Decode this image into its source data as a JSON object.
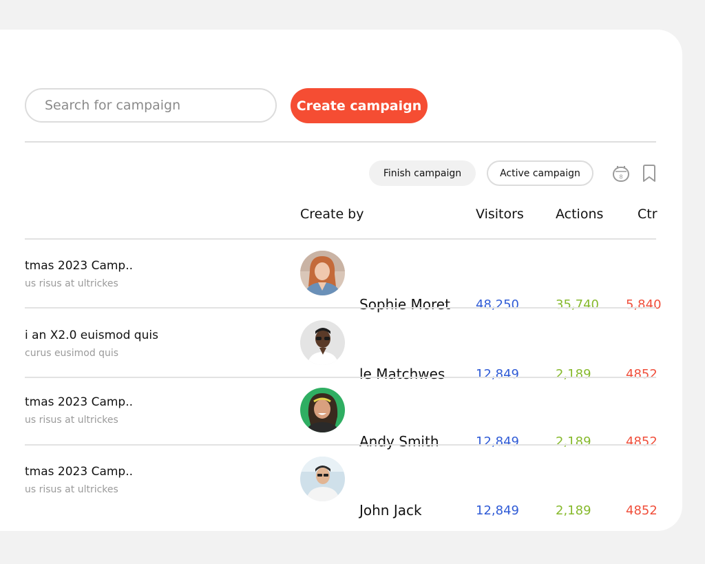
{
  "search": {
    "placeholder": "Search for campaign"
  },
  "create_button": {
    "label": "Create campaign"
  },
  "filters": [
    {
      "label": "Finish campaign"
    },
    {
      "label": "Active campaign"
    }
  ],
  "calendar_badge": "8",
  "columns": {
    "create_by": "Create by",
    "visitors": "Visitors",
    "actions": "Actions",
    "ctr": "Ctr"
  },
  "rows": [
    {
      "title": "tmas 2023 Camp..",
      "subtitle": "us risus at ultrickes",
      "creator": "Sophie Moret",
      "visitors": "48,250",
      "actions": "35,740",
      "ctr": "5,840"
    },
    {
      "title": "i an X2.0 euismod quis",
      "subtitle": "curus eusimod quis",
      "creator": "le Matchwes",
      "visitors": "12,849",
      "actions": "2,189",
      "ctr": "4852"
    },
    {
      "title": "tmas 2023 Camp..",
      "subtitle": "us risus at ultrickes",
      "creator": "Andy Smith",
      "visitors": "12,849",
      "actions": "2,189",
      "ctr": "4852"
    },
    {
      "title": "tmas 2023 Camp..",
      "subtitle": "us risus at ultrickes",
      "creator": "John Jack",
      "visitors": "12,849",
      "actions": "2,189",
      "ctr": "4852"
    }
  ],
  "colors": {
    "accent": "#f54d33",
    "visitors": "#2f5bd6",
    "actions": "#86b92c",
    "ctr": "#f04e3a"
  }
}
